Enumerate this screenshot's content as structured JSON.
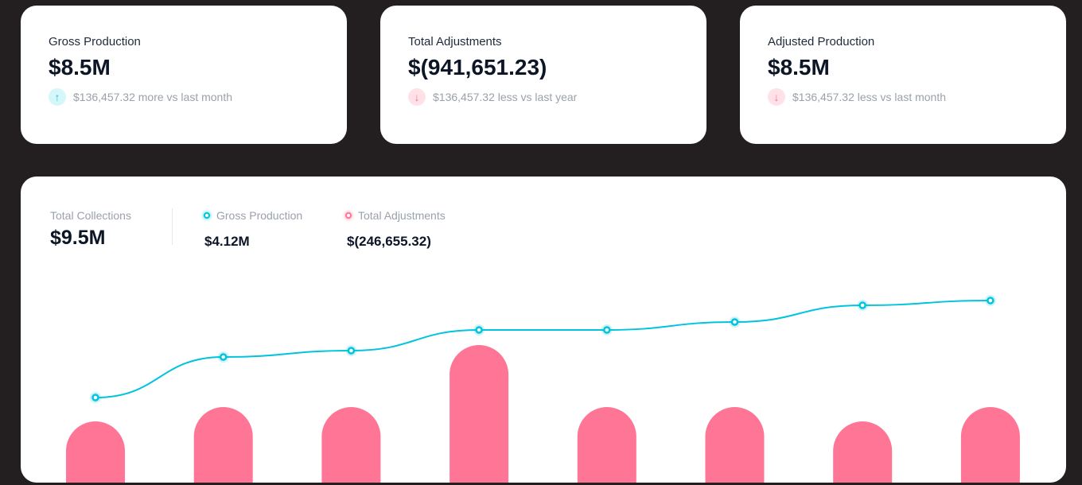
{
  "colors": {
    "accent_cyan": "#00c4dc",
    "accent_pink": "#ff7596",
    "background": "#231f20"
  },
  "cards": [
    {
      "label": "Gross Production",
      "value": "$8.5M",
      "delta": "$136,457.32 more vs last month",
      "direction": "up",
      "icon": "arrow-up-icon"
    },
    {
      "label": "Total Adjustments",
      "value": "$(941,651.23)",
      "delta": "$136,457.32 less vs last year",
      "direction": "down",
      "icon": "arrow-down-icon"
    },
    {
      "label": "Adjusted Production",
      "value": "$8.5M",
      "delta": "$136,457.32 less vs last month",
      "direction": "down",
      "icon": "arrow-down-icon"
    }
  ],
  "summary": {
    "total_label": "Total Collections",
    "total_value": "$9.5M",
    "legend": [
      {
        "label": "Gross Production",
        "value": "$4.12M"
      },
      {
        "label": "Total Adjustments",
        "value": "$(246,655.32)"
      }
    ]
  },
  "chart_data": {
    "type": "bar+line",
    "categories": [
      "1",
      "2",
      "3",
      "4",
      "5",
      "6",
      "7",
      "8"
    ],
    "series": [
      {
        "name": "Gross Production",
        "type": "line",
        "values": [
          107,
          158,
          166,
          192,
          192,
          202,
          223,
          229
        ]
      },
      {
        "name": "Total Adjustments",
        "type": "bar",
        "values": [
          77,
          95,
          95,
          173,
          95,
          95,
          77,
          95
        ]
      }
    ],
    "ylim": [
      0,
      240
    ],
    "grid": false,
    "axes_visible": false
  }
}
